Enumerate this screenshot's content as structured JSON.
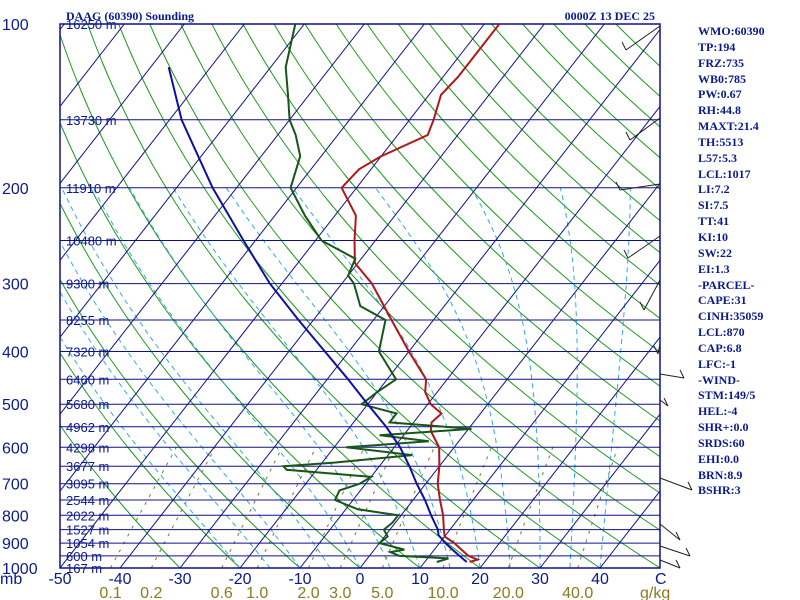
{
  "header": {
    "title": "DAAG (60390) Sounding",
    "time": "0000Z 13 DEC 25"
  },
  "colors": {
    "frame": "#10108c",
    "isobar": "#10108c",
    "isotherm": "#10108c",
    "dry_adiabat": "#1a9a1a",
    "moist_adiabat": "#33aadd",
    "mixing_ratio": "#7a7a2a",
    "temperature": "#b01818",
    "dewpoint": "#185518",
    "parcel": "#1010a0",
    "text": "#0a1a8c",
    "mixing_ratio_labels": "#8a7a20"
  },
  "chart_data": {
    "type": "line",
    "title": "DAAG (60390) Sounding",
    "valid_time": "0000Z 13 DEC 25",
    "x_axis_unit": "C",
    "mixing_ratio_unit": "g/kg",
    "y_axis_unit": "mb",
    "ylim": [
      1000,
      100
    ],
    "xlim": [
      -50,
      50
    ],
    "temperature_ticks": [
      -50,
      -40,
      -30,
      -20,
      -10,
      0,
      10,
      20,
      30,
      40
    ],
    "pressure_levels": [
      1000,
      900,
      800,
      700,
      600,
      500,
      400,
      300,
      200,
      100
    ],
    "mixing_ratio_ticks": [
      "0.1",
      "0.2",
      "0.6",
      "1.0",
      "2.0",
      "3.0",
      "5.0",
      "10.0",
      "20.0",
      "40.0"
    ],
    "mixing_ratio_values": [
      0.1,
      0.2,
      0.6,
      1.0,
      2.0,
      3.0,
      5.0,
      10.0,
      20.0,
      40.0
    ],
    "heights": [
      {
        "p": 100,
        "label": "16250 m"
      },
      {
        "p": 150,
        "label": "13730 m"
      },
      {
        "p": 200,
        "label": "11910 m"
      },
      {
        "p": 250,
        "label": "10480 m"
      },
      {
        "p": 300,
        "label": "9300 m"
      },
      {
        "p": 350,
        "label": "8255 m"
      },
      {
        "p": 400,
        "label": "7320 m"
      },
      {
        "p": 450,
        "label": "6460 m"
      },
      {
        "p": 500,
        "label": "5680 m"
      },
      {
        "p": 550,
        "label": "4962 m"
      },
      {
        "p": 600,
        "label": "4298 m"
      },
      {
        "p": 650,
        "label": "3677 m"
      },
      {
        "p": 700,
        "label": "3095 m"
      },
      {
        "p": 750,
        "label": "2544 m"
      },
      {
        "p": 800,
        "label": "2022 m"
      },
      {
        "p": 850,
        "label": "1527 m"
      },
      {
        "p": 900,
        "label": "1054 m"
      },
      {
        "p": 950,
        "label": "600 m"
      },
      {
        "p": 1000,
        "label": "167 m"
      }
    ],
    "series": [
      {
        "name": "Temperature",
        "points": [
          [
            975,
            17.5
          ],
          [
            965,
            18.5
          ],
          [
            950,
            16.5
          ],
          [
            925,
            14.5
          ],
          [
            900,
            12.5
          ],
          [
            875,
            10.0
          ],
          [
            850,
            9.0
          ],
          [
            800,
            7.0
          ],
          [
            750,
            4.5
          ],
          [
            700,
            2.0
          ],
          [
            650,
            0.0
          ],
          [
            600,
            -2.5
          ],
          [
            560,
            -6.0
          ],
          [
            540,
            -7.0
          ],
          [
            520,
            -6.5
          ],
          [
            500,
            -9.5
          ],
          [
            475,
            -12.0
          ],
          [
            450,
            -13.5
          ],
          [
            400,
            -20.0
          ],
          [
            350,
            -27.0
          ],
          [
            300,
            -35.0
          ],
          [
            275,
            -40.5
          ],
          [
            250,
            -43.5
          ],
          [
            225,
            -46.5
          ],
          [
            200,
            -52.5
          ],
          [
            185,
            -52.0
          ],
          [
            175,
            -50.0
          ],
          [
            160,
            -45.0
          ],
          [
            150,
            -46.0
          ],
          [
            135,
            -48.0
          ],
          [
            125,
            -47.5
          ],
          [
            100,
            -47.5
          ]
        ]
      },
      {
        "name": "Dewpoint",
        "points": [
          [
            975,
            12.0
          ],
          [
            960,
            13.5
          ],
          [
            950,
            5.0
          ],
          [
            935,
            3.0
          ],
          [
            925,
            5.0
          ],
          [
            900,
            0.0
          ],
          [
            875,
            0.5
          ],
          [
            850,
            -1.0
          ],
          [
            825,
            -0.5
          ],
          [
            800,
            -0.5
          ],
          [
            780,
            -8.0
          ],
          [
            750,
            -13.0
          ],
          [
            720,
            -13.5
          ],
          [
            700,
            -11.0
          ],
          [
            680,
            -10.0
          ],
          [
            660,
            -25.0
          ],
          [
            650,
            -26.0
          ],
          [
            640,
            -18.0
          ],
          [
            620,
            -6.0
          ],
          [
            600,
            -18.0
          ],
          [
            585,
            -5.0
          ],
          [
            570,
            -14.0
          ],
          [
            555,
            0.5
          ],
          [
            540,
            -14.0
          ],
          [
            520,
            -14.0
          ],
          [
            500,
            -21.0
          ],
          [
            475,
            -20.0
          ],
          [
            450,
            -18.5
          ],
          [
            400,
            -25.0
          ],
          [
            350,
            -28.0
          ],
          [
            330,
            -34.0
          ],
          [
            300,
            -38.0
          ],
          [
            290,
            -40.0
          ],
          [
            270,
            -41.0
          ],
          [
            250,
            -49.0
          ],
          [
            225,
            -55.0
          ],
          [
            200,
            -61.0
          ],
          [
            175,
            -63.5
          ],
          [
            160,
            -67.0
          ],
          [
            150,
            -70.0
          ],
          [
            135,
            -73.5
          ],
          [
            120,
            -77.5
          ],
          [
            100,
            -81.5
          ]
        ]
      },
      {
        "name": "Parcel",
        "points": [
          [
            975,
            17.0
          ],
          [
            950,
            15.0
          ],
          [
            925,
            13.0
          ],
          [
            900,
            11.0
          ],
          [
            870,
            8.8
          ],
          [
            850,
            8.0
          ],
          [
            800,
            5.0
          ],
          [
            750,
            2.0
          ],
          [
            700,
            -1.5
          ],
          [
            650,
            -5.0
          ],
          [
            600,
            -9.0
          ],
          [
            550,
            -14.0
          ],
          [
            500,
            -20.0
          ],
          [
            450,
            -26.5
          ],
          [
            400,
            -34.0
          ],
          [
            350,
            -42.5
          ],
          [
            300,
            -52.0
          ],
          [
            250,
            -62.0
          ],
          [
            200,
            -74.0
          ],
          [
            150,
            -88.0
          ],
          [
            120,
            -97.0
          ]
        ]
      }
    ],
    "grid": true
  },
  "indices": [
    "WMO:60390",
    "TP:194",
    "FRZ:735",
    "WB0:785",
    "PW:0.67",
    "RH:44.8",
    "MAXT:21.4",
    "TH:5513",
    "L57:5.3",
    "LCL:1017",
    "LI:7.2",
    "SI:7.5",
    "TT:41",
    "KI:10",
    "SW:22",
    "EI:1.3",
    "-PARCEL-",
    "CAPE:31",
    "CINH:35059",
    "LCL:870",
    "CAP:6.8",
    "LFC:-1",
    "-WIND-",
    "STM:149/5",
    "HEL:-4",
    "SHR+:0.0",
    "SRDS:60",
    "EHI:0.0",
    "BRN:8.9",
    "BSHR:3"
  ]
}
